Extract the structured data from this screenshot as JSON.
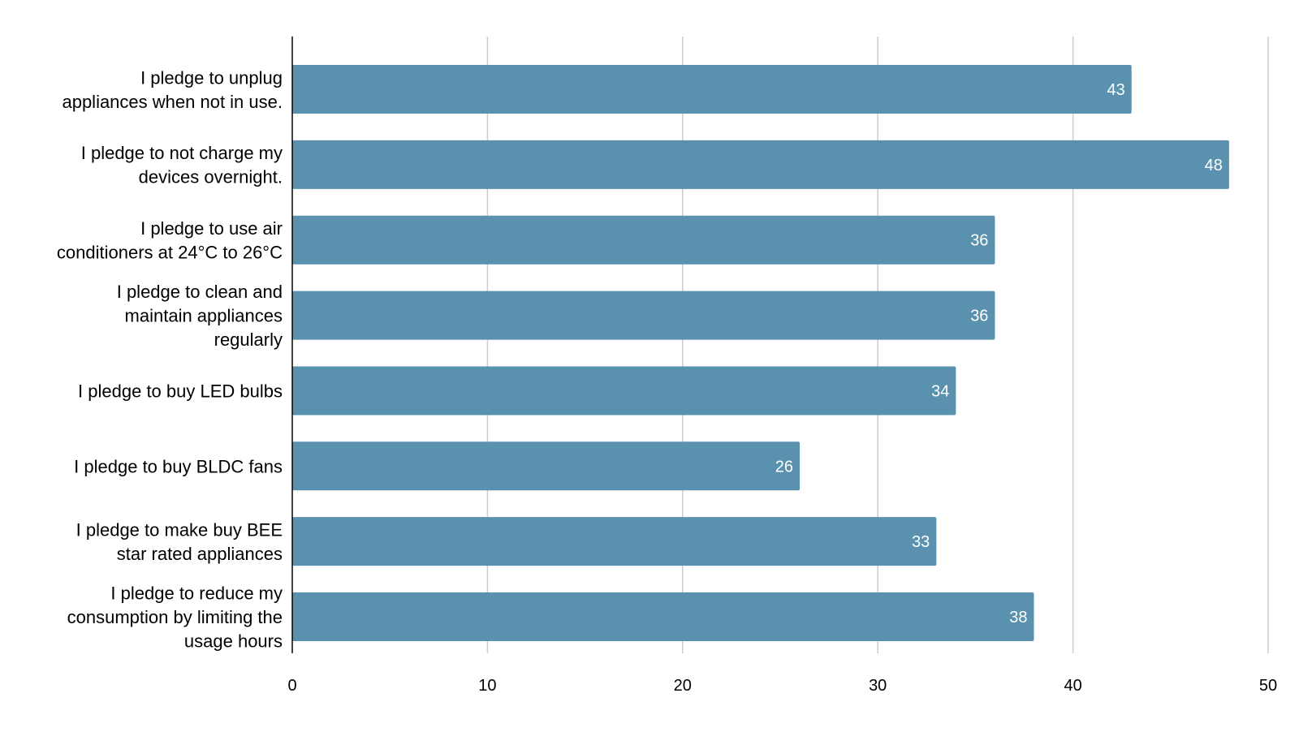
{
  "chart_data": {
    "type": "bar",
    "orientation": "horizontal",
    "categories": [
      [
        "I pledge to unplug",
        "appliances when not in use."
      ],
      [
        "I pledge to not charge my",
        "devices overnight."
      ],
      [
        "I pledge to use air",
        "conditioners at 24°C to 26°C"
      ],
      [
        "I pledge to clean and",
        "maintain appliances",
        "regularly"
      ],
      [
        "I pledge to buy LED bulbs"
      ],
      [
        "I pledge to  buy BLDC fans"
      ],
      [
        "I pledge to make buy BEE",
        "star rated appliances"
      ],
      [
        "I pledge to reduce my",
        "consumption by limiting the",
        "usage hours"
      ]
    ],
    "values": [
      43,
      48,
      36,
      36,
      34,
      26,
      33,
      38
    ],
    "data_labels": [
      "43",
      "48",
      "36",
      "36",
      "34",
      "26",
      "33",
      "38"
    ],
    "xlim": [
      0,
      50
    ],
    "xticks": [
      0,
      10,
      20,
      30,
      40,
      50
    ],
    "xtick_labels": [
      "0",
      "10",
      "20",
      "30",
      "40",
      "50"
    ],
    "title": "",
    "xlabel": "",
    "ylabel": "",
    "grid": "vertical",
    "legend": "none",
    "bar_color": "#5a91ae",
    "gridline_color": "#cccccc",
    "axis_color": "#000000"
  }
}
